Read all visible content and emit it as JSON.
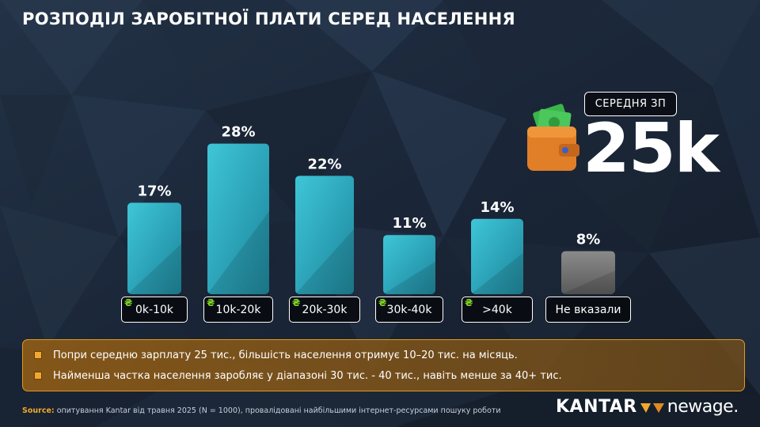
{
  "title": "РОЗПОДІЛ ЗАРОБІТНОЇ ПЛАТИ СЕРЕД НАСЕЛЕННЯ",
  "currency_symbol": "₴",
  "average": {
    "label": "СЕРЕДНЯ ЗП",
    "value": "25k"
  },
  "chart_data": {
    "type": "bar",
    "categories": [
      "0k-10k",
      "10k-20k",
      "20k-30k",
      "30k-40k",
      ">40k",
      "Не вказали"
    ],
    "values": [
      17,
      28,
      22,
      11,
      14,
      8
    ],
    "value_labels": [
      "17%",
      "28%",
      "22%",
      "11%",
      "14%",
      "8%"
    ],
    "colors": [
      "#2fb0c4",
      "#2fb0c4",
      "#2fb0c4",
      "#2fb0c4",
      "#2fb0c4",
      "#6f6f6f"
    ],
    "title": "РОЗПОДІЛ ЗАРОБІТНОЇ ПЛАТИ СЕРЕД НАСЕЛЕННЯ",
    "xlabel": "",
    "ylabel": "",
    "ylim": [
      0,
      30
    ],
    "grid": false
  },
  "notes": [
    "Попри середню зарплату 25 тис., більшість населення отримує 10–20 тис. на місяць.",
    "Найменша частка населення заробляє у діапазоні 30 тис. - 40 тис., навіть менше за 40+ тис."
  ],
  "source": {
    "label": "Source:",
    "text": "опитування Kantar від травня 2025 (N = 1000), провалідовані найбільшими інтернет-ресурсами пошуку роботи"
  },
  "logo": {
    "left": "KANTAR",
    "right": "newage."
  },
  "colors": {
    "accent": "#2fb0c4",
    "highlight": "#f0a830",
    "muted": "#6f6f6f"
  }
}
